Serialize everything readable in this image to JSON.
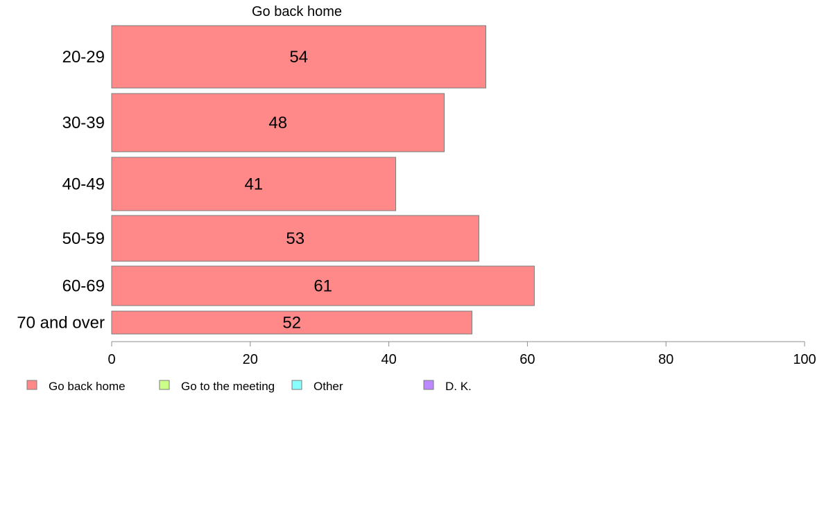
{
  "chart_data": {
    "type": "bar",
    "orientation": "horizontal",
    "title": "Go back home",
    "categories": [
      "20-29",
      "30-39",
      "40-49",
      "50-59",
      "60-69",
      "70 and over"
    ],
    "series": [
      {
        "name": "Go back home",
        "values": [
          54,
          48,
          41,
          53,
          61,
          52
        ],
        "color": "#ff8888"
      }
    ],
    "value_labels": [
      "54",
      "48",
      "41",
      "53",
      "61",
      "52"
    ],
    "xlim": [
      0,
      100
    ],
    "xticks": [
      0,
      20,
      40,
      60,
      80,
      100
    ],
    "grid": false,
    "legend": {
      "position": "bottom-left",
      "items": [
        {
          "label": "Go back home",
          "color": "#ff8888"
        },
        {
          "label": "Go to the meeting",
          "color": "#ccff88"
        },
        {
          "label": "Other",
          "color": "#88ffff"
        },
        {
          "label": "D. K.",
          "color": "#bb88ff"
        }
      ]
    }
  }
}
